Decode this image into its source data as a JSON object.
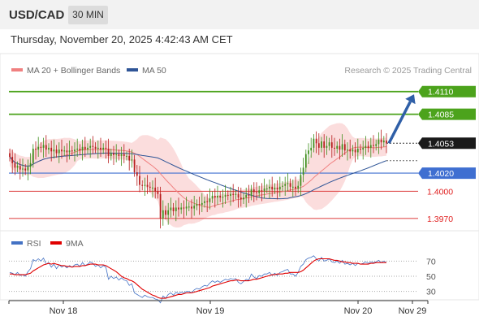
{
  "header": {
    "symbol": "USD/CAD",
    "timeframe": "30 MIN",
    "datetime": "Thursday, November 20, 2025 4:42:43 AM CET"
  },
  "legend": {
    "ma20_bb": {
      "label": "MA 20 + Bollinger Bands",
      "color": "#f08080"
    },
    "ma50": {
      "label": "MA 50",
      "color": "#2f5597"
    },
    "credit": "Research © 2025 Trading Central"
  },
  "rsi_legend": {
    "rsi": {
      "label": "RSI",
      "color": "#4472c4"
    },
    "ma9": {
      "label": "9MA",
      "color": "#e00000"
    }
  },
  "chart_data": [
    {
      "type": "candlestick",
      "title": "",
      "ylim": [
        1.396,
        1.4125
      ],
      "x_labels": [
        "Nov 18",
        "Nov 19",
        "Nov 20",
        "Nov 29"
      ],
      "current_price": {
        "value": 1.4053,
        "label": "1.4053"
      },
      "levels": [
        {
          "value": 1.411,
          "label": "1.4110",
          "kind": "resistance",
          "color": "#4ca31c"
        },
        {
          "value": 1.4085,
          "label": "1.4085",
          "kind": "resistance",
          "color": "#4ca31c"
        },
        {
          "value": 1.402,
          "label": "1.4020",
          "kind": "pivot",
          "color": "#3f6fd1"
        },
        {
          "value": 1.4,
          "label": "1.4000",
          "kind": "support",
          "color": "#e05050"
        },
        {
          "value": 1.397,
          "label": "1.3970",
          "kind": "support",
          "color": "#e05050"
        }
      ],
      "forecast_arrow": {
        "from": 1.4053,
        "to": 1.4107,
        "direction": "up"
      },
      "closes": [
        1.4038,
        1.4031,
        1.4026,
        1.4028,
        1.4024,
        1.4025,
        1.4023,
        1.4027,
        1.4031,
        1.4047,
        1.4046,
        1.4049,
        1.4048,
        1.4051,
        1.4046,
        1.4048,
        1.4044,
        1.4046,
        1.4042,
        1.4046,
        1.4044,
        1.4045,
        1.4043,
        1.4045,
        1.4044,
        1.4046,
        1.4047,
        1.4045,
        1.4049,
        1.4046,
        1.4048,
        1.405,
        1.4049,
        1.4047,
        1.4048,
        1.4046,
        1.4048,
        1.4047,
        1.4039,
        1.4042,
        1.404,
        1.4041,
        1.4039,
        1.4041,
        1.4039,
        1.4039,
        1.4034,
        1.4035,
        1.4021,
        1.4017,
        1.4007,
        1.4006,
        1.4007,
        1.4005,
        1.4004,
        1.4004,
        1.4,
        1.3997,
        1.397,
        1.3979,
        1.3974,
        1.3979,
        1.3982,
        1.3978,
        1.3982,
        1.398,
        1.3982,
        1.3981,
        1.3983,
        1.3983,
        1.3981,
        1.3984,
        1.3986,
        1.3985,
        1.3987,
        1.3989,
        1.3988,
        1.3992,
        1.3995,
        1.3993,
        1.3995,
        1.3993,
        1.3994,
        1.3996,
        1.3995,
        1.3997,
        1.3996,
        1.3997,
        1.3993,
        1.3991,
        1.3993,
        1.3996,
        1.3995,
        1.4002,
        1.3999,
        1.3998,
        1.4001,
        1.4,
        1.4003,
        1.4003,
        1.4005,
        1.4002,
        1.4004,
        1.4002,
        1.4005,
        1.4006,
        1.4008,
        1.4009,
        1.4005,
        1.4005,
        1.4003,
        1.4006,
        1.4018,
        1.4026,
        1.4041,
        1.4045,
        1.4048,
        1.4058,
        1.4053,
        1.4048,
        1.4055,
        1.4048,
        1.405,
        1.4054,
        1.4048,
        1.4047,
        1.405,
        1.4046,
        1.4052,
        1.4045,
        1.4046,
        1.4044,
        1.4046,
        1.4043,
        1.4047,
        1.4046,
        1.4048,
        1.405,
        1.4048,
        1.4051,
        1.405,
        1.4052,
        1.4057,
        1.4054,
        1.4056,
        1.4053
      ]
    },
    {
      "type": "line",
      "title": "",
      "ylim": [
        20,
        80
      ],
      "y_ticks": [
        70,
        50,
        30
      ],
      "series": [
        {
          "name": "RSI",
          "values": [
            55,
            54,
            52,
            55,
            51,
            52,
            50,
            56,
            60,
            72,
            70,
            73,
            70,
            74,
            66,
            68,
            62,
            66,
            60,
            65,
            62,
            64,
            61,
            64,
            62,
            65,
            66,
            63,
            68,
            64,
            66,
            69,
            67,
            63,
            65,
            61,
            64,
            62,
            46,
            50,
            47,
            49,
            45,
            48,
            45,
            44,
            38,
            40,
            28,
            26,
            24,
            22,
            25,
            23,
            22,
            22,
            20,
            19,
            15,
            24,
            21,
            26,
            28,
            25,
            29,
            27,
            29,
            28,
            30,
            30,
            28,
            32,
            34,
            33,
            36,
            38,
            37,
            41,
            44,
            42,
            44,
            42,
            44,
            46,
            45,
            47,
            46,
            47,
            42,
            40,
            43,
            46,
            45,
            53,
            49,
            47,
            51,
            50,
            53,
            53,
            55,
            51,
            54,
            51,
            55,
            56,
            58,
            59,
            53,
            53,
            50,
            55,
            63,
            66,
            72,
            74,
            75,
            77,
            73,
            70,
            75,
            70,
            71,
            73,
            69,
            68,
            70,
            67,
            71,
            66,
            67,
            65,
            67,
            64,
            67,
            66,
            67,
            69,
            67,
            69,
            68,
            69,
            71,
            68,
            70,
            68
          ]
        },
        {
          "name": "9MA",
          "values": [
            53,
            53,
            52,
            52,
            52,
            52,
            52,
            53,
            54,
            57,
            59,
            61,
            63,
            65,
            66,
            67,
            66,
            67,
            66,
            65,
            64,
            64,
            63,
            63,
            62,
            63,
            63,
            63,
            64,
            64,
            65,
            66,
            66,
            66,
            65,
            65,
            65,
            64,
            62,
            60,
            58,
            56,
            53,
            50,
            48,
            47,
            45,
            44,
            42,
            39,
            36,
            33,
            31,
            29,
            27,
            25,
            24,
            22,
            21,
            21,
            21,
            22,
            23,
            24,
            25,
            26,
            26,
            27,
            28,
            28,
            28,
            29,
            30,
            31,
            32,
            33,
            34,
            35,
            37,
            38,
            39,
            40,
            41,
            42,
            43,
            44,
            44,
            45,
            45,
            44,
            44,
            44,
            44,
            45,
            46,
            46,
            47,
            48,
            49,
            50,
            51,
            52,
            52,
            53,
            53,
            53,
            54,
            54,
            55,
            55,
            55,
            55,
            56,
            58,
            61,
            64,
            67,
            70,
            72,
            73,
            73,
            73,
            73,
            73,
            72,
            71,
            71,
            70,
            69,
            69,
            68,
            68,
            67,
            67,
            67,
            66,
            66,
            66,
            66,
            67,
            67,
            68,
            68,
            68,
            68,
            68
          ]
        }
      ]
    }
  ]
}
